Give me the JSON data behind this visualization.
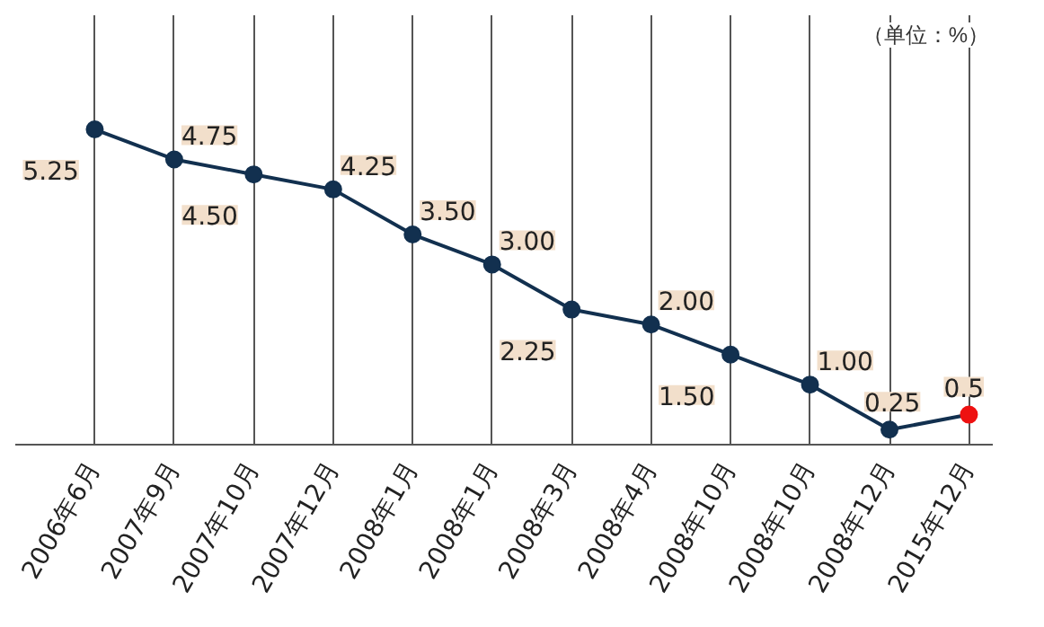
{
  "chart_data": {
    "type": "line",
    "categories": [
      "2006年6月",
      "2007年9月",
      "2007年10月",
      "2007年12月",
      "2008年1月",
      "2008年1月",
      "2008年3月",
      "2008年4月",
      "2008年10月",
      "2008年10月",
      "2008年12月",
      "2015年12月"
    ],
    "series": [
      {
        "color": "#12304f",
        "colors": [
          "#12304f",
          "#12304f",
          "#12304f",
          "#12304f",
          "#12304f",
          "#12304f",
          "#12304f",
          "#12304f",
          "#12304f",
          "#12304f",
          "#12304f",
          "#ee1111"
        ],
        "values": [
          5.25,
          4.75,
          4.5,
          4.25,
          3.5,
          3.0,
          2.25,
          2.0,
          1.5,
          1.0,
          0.25,
          0.5
        ],
        "value_labels": [
          "5.25",
          "4.75",
          "4.50",
          "4.25",
          "3.50",
          "3.00",
          "2.25",
          "2.00",
          "1.50",
          "1.00",
          "0.25",
          "0.5"
        ]
      }
    ],
    "annotations": [
      "（单位：%）"
    ],
    "grid": "x",
    "marker": "circle"
  }
}
